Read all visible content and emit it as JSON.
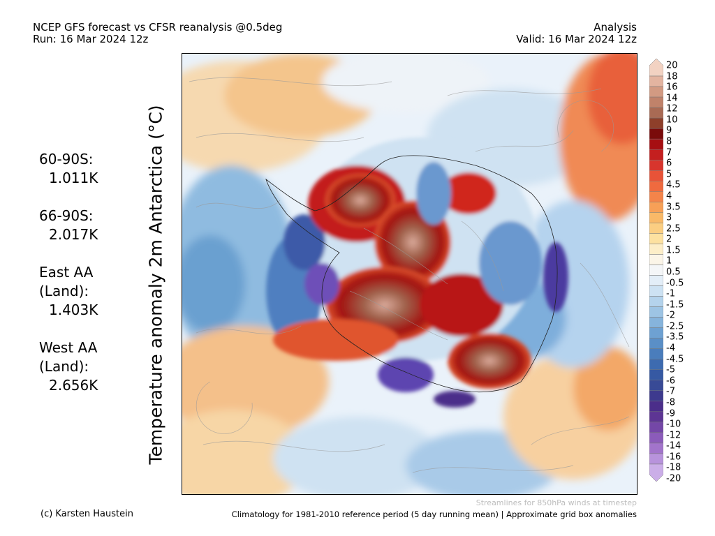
{
  "header": {
    "title_line1": "NCEP GFS forecast vs CFSR reanalysis @0.5deg",
    "title_line2": "Run: 16 Mar 2024 12z",
    "right_line1": "Analysis",
    "right_line2": "Valid: 16 Mar 2024 12z"
  },
  "stats": [
    {
      "label": "60-90S:",
      "value": "1.011K"
    },
    {
      "label": "66-90S:",
      "value": "2.017K"
    },
    {
      "label": "East AA\n(Land):",
      "value": "1.403K"
    },
    {
      "label": "West AA\n(Land):",
      "value": "2.656K"
    }
  ],
  "ylabel": "Temperature anomaly 2m Antarctica (°C)",
  "colorbar": {
    "ticks": [
      "20",
      "18",
      "16",
      "14",
      "12",
      "10",
      "9",
      "8",
      "7",
      "6",
      "5",
      "4.5",
      "4",
      "3.5",
      "3",
      "2.5",
      "2",
      "1.5",
      "1",
      "0.5",
      "-0.5",
      "-1",
      "-1.5",
      "-2",
      "-2.5",
      "-3.5",
      "-4",
      "-4.5",
      "-5",
      "-6",
      "-7",
      "-8",
      "-9",
      "-10",
      "-12",
      "-14",
      "-16",
      "-18",
      "-20"
    ],
    "colors": [
      "#f2d2c2",
      "#e3b4a0",
      "#d29a82",
      "#c0826a",
      "#a96a54",
      "#8e3f2a",
      "#7a0b0b",
      "#a60f12",
      "#c41f1f",
      "#d8352d",
      "#e85338",
      "#ef6a3f",
      "#f4844a",
      "#f7a057",
      "#f9b968",
      "#fbce82",
      "#fde1a0",
      "#fdeec8",
      "#fbf5e8",
      "#f4f6f8",
      "#e3eef8",
      "#cde2f3",
      "#b4d3ec",
      "#9dc4e4",
      "#86b4dc",
      "#6ea1d2",
      "#5a8fc7",
      "#4a7dbc",
      "#3d6bb0",
      "#3659a3",
      "#384a96",
      "#3d3a8e",
      "#4b2e8a",
      "#5d3594",
      "#7447a7",
      "#8b5bba",
      "#a274cb",
      "#b893dc",
      "#cbaee8"
    ]
  },
  "footer": {
    "stream_note": "Streamlines for 850hPa winds at timestep",
    "credit": "(c) Karsten Haustein",
    "climatology": "Climatology for 1981-2010 reference period (5 day running mean) | Approximate grid box anomalies"
  }
}
